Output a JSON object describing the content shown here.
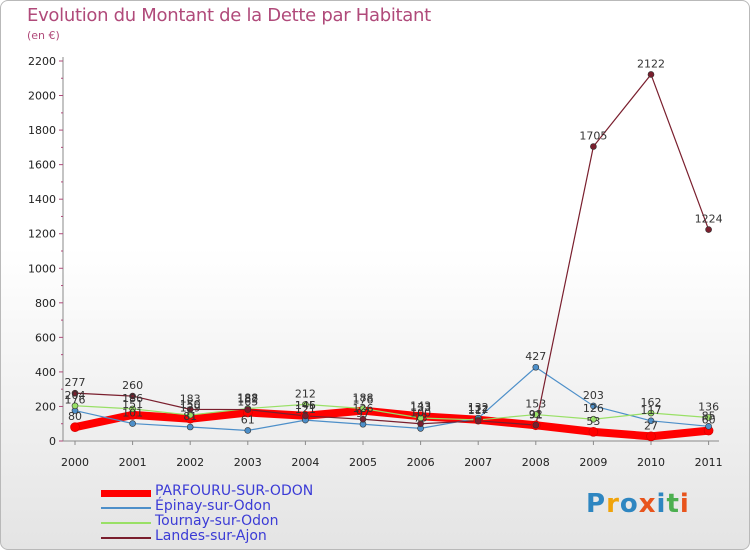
{
  "header": {
    "title": "Evolution du Montant de la Dette par Habitant",
    "unit": "(en €)"
  },
  "logo": {
    "text": "Proxiti",
    "colors": [
      "#2e86c1",
      "#f0a30a",
      "#2e86c1",
      "#e8541c",
      "#2e86c1",
      "#4caf50",
      "#e8541c"
    ]
  },
  "chart_data": {
    "type": "line",
    "title": "Evolution du Montant de la Dette par Habitant",
    "ylabel": "(en €)",
    "xlabel": "",
    "x": [
      "2000",
      "2001",
      "2002",
      "2003",
      "2004",
      "2005",
      "2006",
      "2007",
      "2008",
      "2009",
      "2010",
      "2011"
    ],
    "ylim": [
      0,
      2200
    ],
    "yticks": [
      0,
      200,
      400,
      600,
      800,
      1000,
      1200,
      1400,
      1600,
      1800,
      2000,
      2200
    ],
    "grid": false,
    "legend": "bottom-left",
    "series": [
      {
        "name": "PARFOURU-SUR-ODON",
        "color": "#ff0000",
        "values": [
          80,
          151,
          129,
          165,
          146,
          176,
          143,
          123,
          91,
          53,
          27,
          60
        ],
        "labels": [
          "80",
          "151",
          "129",
          "165",
          "146",
          "176",
          "143",
          "",
          "91",
          "53",
          "27",
          "60"
        ]
      },
      {
        "name": "Épinay-sur-Odon",
        "color": "#4d8fc9",
        "values": [
          176,
          101,
          81,
          61,
          121,
          97,
          73,
          132,
          427,
          203,
          117,
          85
        ],
        "labels": [
          "176",
          "101",
          "81",
          "61",
          "121",
          "97",
          "73",
          "132",
          "427",
          "203",
          "117",
          "85"
        ]
      },
      {
        "name": "Tournay-sur-Odon",
        "color": "#99e066",
        "values": [
          204,
          186,
          150,
          188,
          212,
          188,
          133,
          122,
          153,
          126,
          162,
          136
        ],
        "labels": [
          "204",
          "186",
          "150",
          "188",
          "212",
          "188",
          "133",
          "122",
          "153",
          "126",
          "162",
          "136"
        ]
      },
      {
        "name": "Landes-sur-Ajon",
        "color": "#7a1f2e",
        "values": [
          277,
          260,
          183,
          182,
          145,
          126,
          100,
          117,
          92,
          1705,
          2122,
          1224
        ],
        "labels": [
          "277",
          "260",
          "183",
          "182",
          "145",
          "126",
          "100",
          "117",
          "92",
          "1705",
          "2122",
          "1224"
        ]
      }
    ]
  }
}
